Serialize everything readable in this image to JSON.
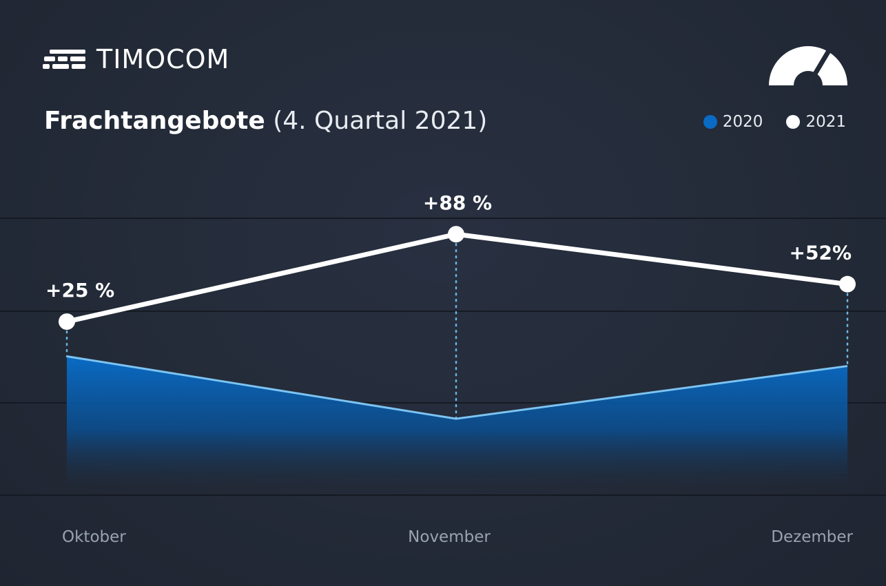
{
  "brand": {
    "name": "TIMOCOM",
    "logo_icon": "speed-lines-logo-icon",
    "gauge_icon": "gauge-icon"
  },
  "title": {
    "main": "Frachtangebote",
    "sub": "(4. Quartal 2021)"
  },
  "legend": [
    {
      "label": "2020",
      "color": "#0a6bc4"
    },
    {
      "label": "2021",
      "color": "#ffffff"
    }
  ],
  "chart_data": {
    "type": "line",
    "categories": [
      "Oktober",
      "November",
      "Dezember"
    ],
    "series": [
      {
        "name": "2020",
        "values": [
          100,
          55,
          93
        ],
        "style": "area",
        "color": "#0a6bc4",
        "line_color": "#7cc4f2"
      },
      {
        "name": "2021",
        "values": [
          125,
          188,
          152
        ],
        "style": "line",
        "color": "#ffffff"
      }
    ],
    "data_labels": [
      "+25 %",
      "+88 %",
      "+52%"
    ],
    "ylim": [
      0,
      260
    ],
    "grid": true,
    "legend_position": "top-right",
    "xlabel": "",
    "ylabel": ""
  }
}
